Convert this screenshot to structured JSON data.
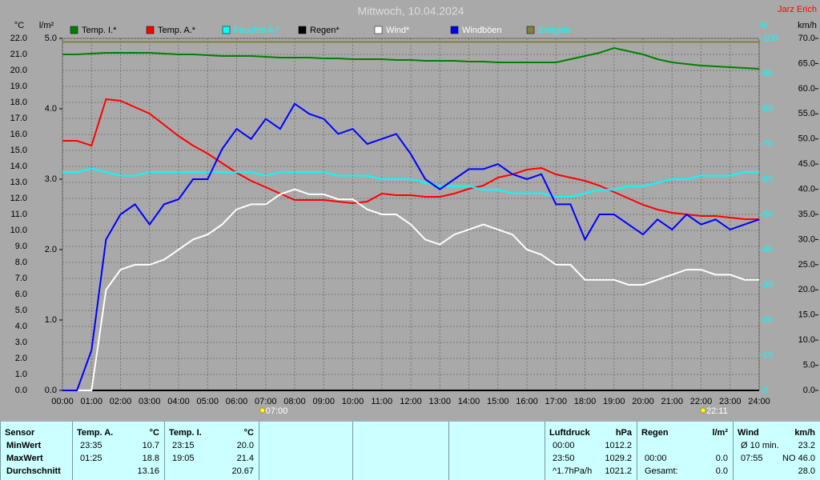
{
  "chart_data": {
    "type": "line",
    "title": "Mittwoch, 10.04.2024",
    "author": "Jarz Erich",
    "axis_labels": {
      "y": "°C",
      "y2": "l/m²",
      "y3": "%",
      "y4": "km/h"
    },
    "x": [
      0,
      0.5,
      1,
      1.5,
      2,
      2.5,
      3,
      3.5,
      4,
      4.5,
      5,
      5.5,
      6,
      6.5,
      7,
      7.5,
      8,
      8.5,
      9,
      9.5,
      10,
      10.5,
      11,
      11.5,
      12,
      12.5,
      13,
      13.5,
      14,
      14.5,
      15,
      15.5,
      16,
      16.5,
      17,
      17.5,
      18,
      18.5,
      19,
      19.5,
      20,
      20.5,
      21,
      21.5,
      22,
      22.5,
      23,
      23.5,
      24
    ],
    "xlim": [
      0,
      24
    ],
    "xticks": [
      {
        "value": 0,
        "label": "00:00"
      },
      {
        "value": 1,
        "label": "01:00"
      },
      {
        "value": 2,
        "label": "02:00"
      },
      {
        "value": 3,
        "label": "03:00"
      },
      {
        "value": 4,
        "label": "04:00"
      },
      {
        "value": 5,
        "label": "05:00"
      },
      {
        "value": 6,
        "label": "06:00"
      },
      {
        "value": 7,
        "label": "07:00"
      },
      {
        "value": 8,
        "label": "08:00"
      },
      {
        "value": 9,
        "label": "09:00"
      },
      {
        "value": 10,
        "label": "10:00"
      },
      {
        "value": 11,
        "label": "11:00"
      },
      {
        "value": 12,
        "label": "12:00"
      },
      {
        "value": 13,
        "label": "13:00"
      },
      {
        "value": 14,
        "label": "14:00"
      },
      {
        "value": 15,
        "label": "15:00"
      },
      {
        "value": 16,
        "label": "16:00"
      },
      {
        "value": 17,
        "label": "17:00"
      },
      {
        "value": 18,
        "label": "18:00"
      },
      {
        "value": 19,
        "label": "19:00"
      },
      {
        "value": 20,
        "label": "20:00"
      },
      {
        "value": 21,
        "label": "21:00"
      },
      {
        "value": 22,
        "label": "22:00"
      },
      {
        "value": 23,
        "label": "23:00"
      },
      {
        "value": 24,
        "label": "24:00"
      }
    ],
    "ylim": [
      0,
      22
    ],
    "yticks": [
      {
        "value": 0,
        "label": "0.0"
      },
      {
        "value": 1,
        "label": "1.0"
      },
      {
        "value": 2,
        "label": "2.0"
      },
      {
        "value": 3,
        "label": "3.0"
      },
      {
        "value": 4,
        "label": "4.0"
      },
      {
        "value": 5,
        "label": "5.0"
      },
      {
        "value": 6,
        "label": "6.0"
      },
      {
        "value": 7,
        "label": "7.0"
      },
      {
        "value": 8,
        "label": "8.0"
      },
      {
        "value": 9,
        "label": "9.0"
      },
      {
        "value": 10,
        "label": "10.0"
      },
      {
        "value": 11,
        "label": "11.0"
      },
      {
        "value": 12,
        "label": "12.0"
      },
      {
        "value": 13,
        "label": "13.0"
      },
      {
        "value": 14,
        "label": "14.0"
      },
      {
        "value": 15,
        "label": "15.0"
      },
      {
        "value": 16,
        "label": "16.0"
      },
      {
        "value": 17,
        "label": "17.0"
      },
      {
        "value": 18,
        "label": "18.0"
      },
      {
        "value": 19,
        "label": "19.0"
      },
      {
        "value": 20,
        "label": "20.0"
      },
      {
        "value": 21,
        "label": "21.0"
      },
      {
        "value": 22,
        "label": "22.0"
      }
    ],
    "y2lim": [
      0,
      5
    ],
    "y2ticks": [
      {
        "value": 0,
        "label": "0.0"
      },
      {
        "value": 1,
        "label": "1.0"
      },
      {
        "value": 2,
        "label": "2.0"
      },
      {
        "value": 3,
        "label": "3.0"
      },
      {
        "value": 4,
        "label": "4.0"
      },
      {
        "value": 5,
        "label": "5.0"
      }
    ],
    "y3lim": [
      0,
      100
    ],
    "y3ticks": [
      0,
      10,
      20,
      30,
      40,
      50,
      60,
      70,
      80,
      90,
      100
    ],
    "y3color": "#00ffff",
    "y4lim": [
      0,
      70
    ],
    "y4ticks": [
      {
        "value": 0,
        "label": "0.0"
      },
      {
        "value": 5,
        "label": "5.0"
      },
      {
        "value": 10,
        "label": "10.0"
      },
      {
        "value": 15,
        "label": "15.0"
      },
      {
        "value": 20,
        "label": "20.0"
      },
      {
        "value": 25,
        "label": "25.0"
      },
      {
        "value": 30,
        "label": "30.0"
      },
      {
        "value": 35,
        "label": "35.0"
      },
      {
        "value": 40,
        "label": "40.0"
      },
      {
        "value": 45,
        "label": "45.0"
      },
      {
        "value": 50,
        "label": "50.0"
      },
      {
        "value": 55,
        "label": "55.0"
      },
      {
        "value": 60,
        "label": "60.0"
      },
      {
        "value": 65,
        "label": "65.0"
      },
      {
        "value": 70,
        "label": "70.0"
      }
    ],
    "grid": true,
    "series": [
      {
        "name": "Temp. I.*",
        "color": "#008000",
        "legend_color": "#000000",
        "axis": "y",
        "values": [
          21.0,
          21.0,
          21.05,
          21.1,
          21.1,
          21.1,
          21.1,
          21.05,
          21.0,
          21.0,
          20.95,
          20.9,
          20.9,
          20.9,
          20.85,
          20.8,
          20.8,
          20.8,
          20.75,
          20.75,
          20.7,
          20.7,
          20.7,
          20.65,
          20.65,
          20.6,
          20.6,
          20.6,
          20.55,
          20.55,
          20.5,
          20.5,
          20.5,
          20.5,
          20.5,
          20.7,
          20.9,
          21.1,
          21.4,
          21.2,
          21.0,
          20.7,
          20.5,
          20.4,
          20.3,
          20.25,
          20.2,
          20.15,
          20.1
        ]
      },
      {
        "name": "Temp. A.*",
        "color": "#ff0000",
        "legend_color": "#000000",
        "axis": "y",
        "values": [
          15.6,
          15.6,
          15.3,
          18.2,
          18.1,
          17.7,
          17.3,
          16.6,
          15.9,
          15.3,
          14.8,
          14.2,
          13.6,
          13.1,
          12.7,
          12.3,
          11.9,
          11.9,
          11.9,
          11.8,
          11.7,
          11.8,
          12.3,
          12.2,
          12.2,
          12.1,
          12.1,
          12.3,
          12.6,
          12.8,
          13.3,
          13.5,
          13.8,
          13.9,
          13.5,
          13.3,
          13.1,
          12.8,
          12.4,
          12.0,
          11.6,
          11.3,
          11.1,
          11.0,
          10.9,
          10.9,
          10.8,
          10.7,
          10.7
        ]
      },
      {
        "name": "Feuchte A.*",
        "color": "#00ffff",
        "legend_color": "#00ffff",
        "axis": "y3",
        "values": [
          62,
          62,
          63,
          62,
          61,
          61,
          62,
          62,
          62,
          62,
          62,
          62,
          62,
          62,
          61,
          62,
          62,
          62,
          62,
          61,
          61,
          61,
          60,
          60,
          60,
          59,
          58,
          58,
          58,
          57,
          57,
          56,
          56,
          56,
          55,
          55,
          56,
          57,
          57,
          58,
          58,
          59,
          60,
          60,
          61,
          61,
          61,
          62,
          62
        ]
      },
      {
        "name": "Regen*",
        "color": "#000000",
        "legend_color": "#000000",
        "axis": "y2",
        "values": [
          0,
          0,
          0,
          0,
          0,
          0,
          0,
          0,
          0,
          0,
          0,
          0,
          0,
          0,
          0,
          0,
          0,
          0,
          0,
          0,
          0,
          0,
          0,
          0,
          0,
          0,
          0,
          0,
          0,
          0,
          0,
          0,
          0,
          0,
          0,
          0,
          0,
          0,
          0,
          0,
          0,
          0,
          0,
          0,
          0,
          0,
          0,
          0,
          0
        ]
      },
      {
        "name": "Wind*",
        "color": "#ffffff",
        "legend_color": "#ffffff",
        "axis": "y4",
        "values": [
          0,
          0,
          0,
          20,
          24,
          25,
          25,
          26,
          28,
          30,
          31,
          33,
          36,
          37,
          37,
          39,
          40,
          39,
          39,
          38,
          38,
          36,
          35,
          35,
          33,
          30,
          29,
          31,
          32,
          33,
          32,
          31,
          28,
          27,
          25,
          25,
          22,
          22,
          22,
          21,
          21,
          22,
          23,
          24,
          24,
          23,
          23,
          22,
          22
        ]
      },
      {
        "name": "Windböen",
        "color": "#0000ff",
        "legend_color": "#ffffff",
        "axis": "y4",
        "values": [
          0,
          0,
          8,
          30,
          35,
          37,
          33,
          37,
          38,
          42,
          42,
          48,
          52,
          50,
          54,
          52,
          57,
          55,
          54,
          51,
          52,
          49,
          50,
          51,
          47,
          42,
          40,
          42,
          44,
          44,
          45,
          43,
          42,
          43,
          37,
          37,
          30,
          35,
          35,
          33,
          31,
          34,
          32,
          35,
          33,
          34,
          32,
          33,
          34
        ]
      },
      {
        "name": "Ereignis",
        "color": "#808040",
        "legend_color": "#00ffff",
        "axis": "y3",
        "values": [
          99,
          99,
          99,
          99,
          99,
          99,
          99,
          99,
          99,
          99,
          99,
          99,
          99,
          99,
          99,
          99,
          99,
          99,
          99,
          99,
          99,
          99,
          99,
          99,
          99,
          99,
          99,
          99,
          99,
          99,
          99,
          99,
          99,
          99,
          99,
          99,
          99,
          99,
          99,
          99,
          99,
          99,
          99,
          99,
          99,
          99,
          99,
          99,
          99
        ]
      }
    ],
    "annotations": [
      {
        "x": 7,
        "text": "07:00"
      },
      {
        "x": 22.18,
        "text": "22:11"
      }
    ]
  },
  "table": {
    "headers": [
      [
        "Sensor"
      ],
      [
        "Temp. A.",
        "°C"
      ],
      [
        "Temp. I.",
        "°C"
      ],
      [
        "Luftdruck",
        "hPa"
      ],
      [
        "Regen",
        "l/m²"
      ],
      [
        "Wind",
        "km/h"
      ]
    ],
    "rows": [
      {
        "label": "MinWert",
        "cells": [
          [
            "23:35",
            "10.7"
          ],
          [
            "23:15",
            "20.0"
          ],
          [
            "00:00",
            "1012.2"
          ],
          [],
          [
            "Ø 10 min.",
            "23.2"
          ]
        ]
      },
      {
        "label": "MaxWert",
        "cells": [
          [
            "01:25",
            "18.8"
          ],
          [
            "19:05",
            "21.4"
          ],
          [
            "23:50",
            "1029.2"
          ],
          [
            "00:00",
            "0.0"
          ],
          [
            "07:55",
            "NO 46.0"
          ]
        ]
      },
      {
        "label": "Durchschnitt",
        "cells": [
          [
            "13.16"
          ],
          [
            "20.67"
          ],
          [
            "^1.7hPa/h",
            "1021.2"
          ],
          [
            "Gesamt:",
            "0.0"
          ],
          [
            "28.0"
          ]
        ]
      }
    ]
  }
}
